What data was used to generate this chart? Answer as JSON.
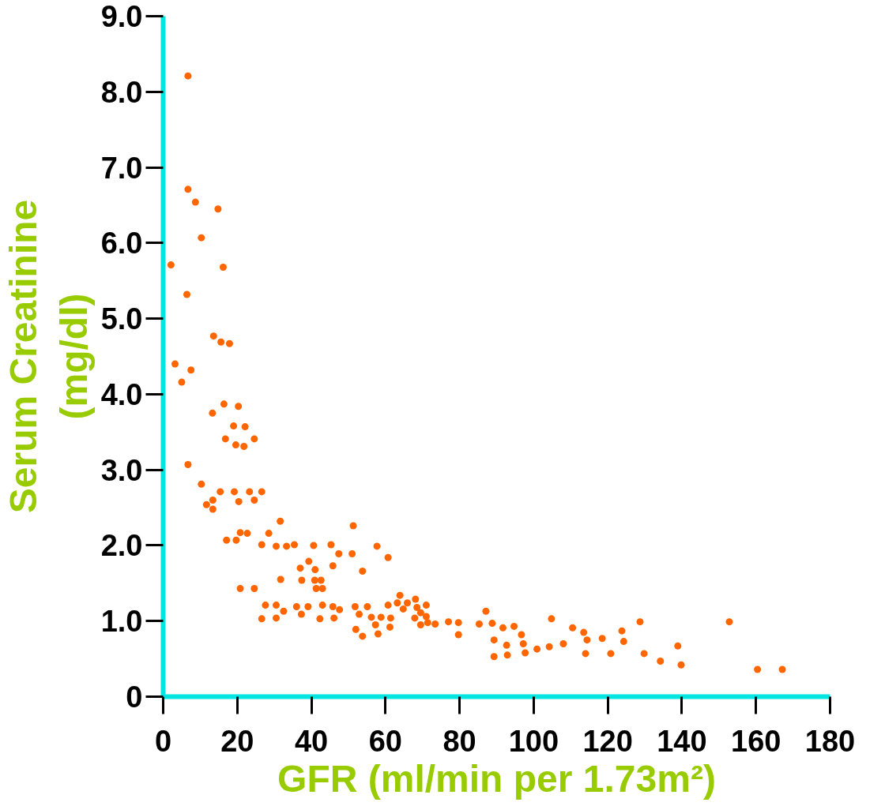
{
  "chart_data": {
    "type": "scatter",
    "xlabel": "GFR (ml/min per 1.73m²)",
    "ylabel": "Serum Creatinine\n(mg/dl)",
    "x": [
      6.7,
      6.7,
      8.7,
      14.8,
      10.3,
      2.1,
      16.2,
      6.4,
      13.6,
      15.6,
      17.9,
      3.2,
      7.5,
      5.0,
      16.4,
      20.3,
      13.3,
      19.0,
      22.1,
      16.8,
      19.6,
      21.8,
      24.6,
      6.7,
      10.3,
      11.7,
      13.4,
      13.4,
      15.4,
      19.2,
      20.4,
      23.3,
      24.6,
      26.6,
      31.6,
      51.3,
      17.1,
      19.7,
      20.8,
      22.7,
      28.5,
      26.6,
      30.5,
      33.3,
      35.4,
      40.6,
      45.3,
      47.4,
      51.0,
      57.7,
      60.7,
      39.3,
      37.0,
      41.0,
      45.8,
      53.8,
      31.7,
      37.4,
      40.9,
      42.6,
      41.3,
      43.0,
      20.8,
      24.6,
      27.6,
      30.5,
      32.5,
      26.6,
      30.5,
      36.0,
      39.1,
      37.3,
      43.0,
      42.3,
      45.8,
      47.6,
      46.1,
      51.8,
      52.9,
      55.1,
      56.2,
      58.8,
      61.4,
      60.7,
      57.3,
      52.0,
      53.8,
      58.0,
      61.2,
      63.2,
      63.9,
      64.8,
      65.9,
      68.1,
      67.9,
      68.5,
      71.0,
      69.5,
      71.0,
      69.5,
      71.4,
      73.4,
      77.0,
      79.7,
      79.7,
      85.3,
      87.1,
      88.8,
      91.7,
      94.7,
      96.7,
      89.3,
      92.7,
      97.2,
      89.3,
      92.9,
      97.7,
      100.9,
      104.2,
      104.8,
      108.0,
      110.5,
      113.5,
      114.4,
      114.0,
      118.5,
      120.8,
      123.8,
      124.3,
      128.7,
      129.8,
      134.2,
      138.9,
      139.8,
      152.8,
      160.4,
      167.1
    ],
    "values": [
      8.21,
      6.71,
      6.54,
      6.45,
      6.07,
      5.71,
      5.68,
      5.32,
      4.77,
      4.69,
      4.67,
      4.4,
      4.32,
      4.16,
      3.87,
      3.84,
      3.75,
      3.58,
      3.57,
      3.41,
      3.33,
      3.31,
      3.41,
      3.07,
      2.81,
      2.54,
      2.6,
      2.48,
      2.71,
      2.71,
      2.58,
      2.71,
      2.6,
      2.71,
      2.32,
      2.26,
      2.07,
      2.07,
      2.17,
      2.16,
      2.16,
      2.01,
      1.99,
      1.99,
      2.01,
      2.0,
      2.01,
      1.89,
      1.89,
      1.99,
      1.84,
      1.79,
      1.7,
      1.68,
      1.73,
      1.66,
      1.55,
      1.54,
      1.54,
      1.54,
      1.43,
      1.43,
      1.43,
      1.43,
      1.21,
      1.21,
      1.13,
      1.03,
      1.04,
      1.19,
      1.19,
      1.09,
      1.21,
      1.03,
      1.19,
      1.15,
      1.04,
      1.19,
      1.09,
      1.19,
      1.05,
      1.05,
      1.04,
      1.21,
      0.95,
      0.89,
      0.8,
      0.83,
      0.92,
      1.24,
      1.34,
      1.16,
      1.24,
      1.29,
      1.04,
      1.18,
      1.21,
      1.11,
      1.06,
      0.95,
      0.98,
      0.96,
      0.99,
      0.98,
      0.82,
      0.96,
      1.13,
      0.97,
      0.91,
      0.93,
      0.82,
      0.75,
      0.68,
      0.7,
      0.53,
      0.55,
      0.58,
      0.63,
      0.66,
      1.03,
      0.7,
      0.91,
      0.85,
      0.75,
      0.57,
      0.77,
      0.57,
      0.87,
      0.73,
      0.99,
      0.57,
      0.47,
      0.67,
      0.42,
      0.99,
      0.36,
      0.36
    ],
    "color": "#ff6600",
    "marker": "circle",
    "grid": false,
    "xlim": [
      0,
      180
    ],
    "ylim": [
      0,
      9
    ],
    "xticks": [
      0,
      20,
      40,
      60,
      80,
      100,
      120,
      140,
      160,
      180
    ],
    "yticks": [
      0,
      {
        "value": 1,
        "label": "1.0"
      },
      {
        "value": 2,
        "label": "2.0"
      },
      {
        "value": 3,
        "label": "3.0"
      },
      {
        "value": 4,
        "label": "4.0"
      },
      {
        "value": 5,
        "label": "5.0"
      },
      {
        "value": 6,
        "label": "6.0"
      },
      {
        "value": 7,
        "label": "7.0"
      },
      {
        "value": 8,
        "label": "8.0"
      },
      {
        "value": 9,
        "label": "9.0"
      }
    ]
  }
}
